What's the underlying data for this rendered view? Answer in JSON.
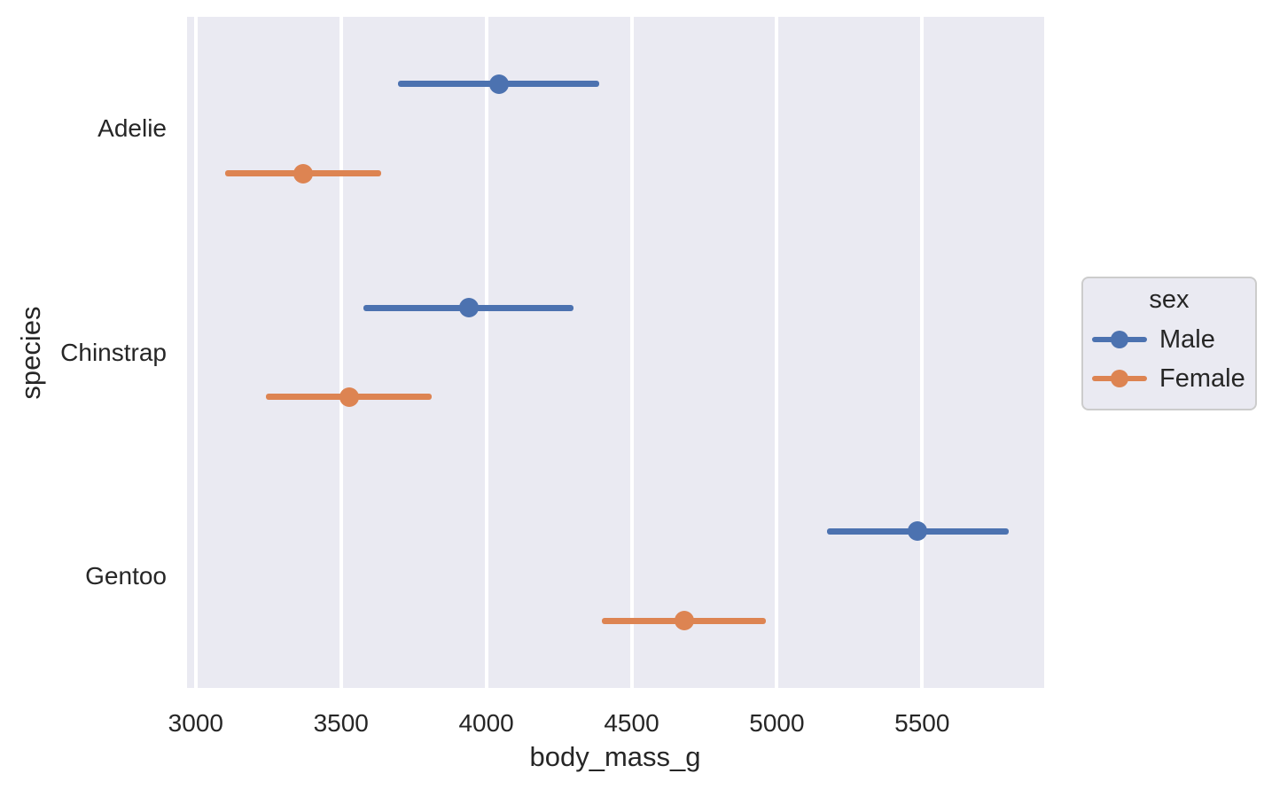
{
  "chart_data": {
    "type": "scatter",
    "subtype": "point-plot-with-error-bars",
    "title": "",
    "xlabel": "body_mass_g",
    "ylabel": "species",
    "categories": [
      "Adelie",
      "Chinstrap",
      "Gentoo"
    ],
    "series": [
      {
        "name": "Male",
        "color": "#4C72B0",
        "means": [
          4043,
          3939,
          5485
        ],
        "err_low": [
          3696,
          3577,
          5172
        ],
        "err_high": [
          4390,
          4301,
          5798
        ]
      },
      {
        "name": "Female",
        "color": "#DD8452",
        "means": [
          3369,
          3527,
          4680
        ],
        "err_low": [
          3100,
          3242,
          4398
        ],
        "err_high": [
          3638,
          3812,
          4962
        ]
      }
    ],
    "x_ticks": [
      3000,
      3500,
      4000,
      4500,
      5000,
      5500
    ],
    "xlim": [
      2970,
      5920
    ],
    "grid": "vertical-only",
    "legend": {
      "title": "sex",
      "entries": [
        "Male",
        "Female"
      ],
      "position": "right-outside"
    },
    "colors": {
      "axes_background": "#EAEAF2",
      "figure_background": "#FFFFFF",
      "gridline": "#FFFFFF",
      "text": "#262626",
      "legend_border": "#CCCCCC"
    }
  }
}
